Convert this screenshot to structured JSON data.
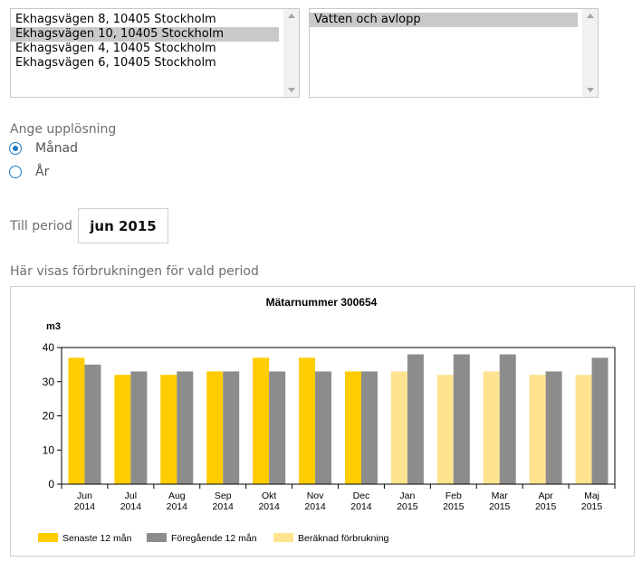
{
  "addresses": {
    "items": [
      {
        "label": "Ekhagsvägen 8, 10405 Stockholm",
        "selected": false
      },
      {
        "label": "Ekhagsvägen 10, 10405 Stockholm",
        "selected": true
      },
      {
        "label": "Ekhagsvägen 4, 10405 Stockholm",
        "selected": false
      },
      {
        "label": "Ekhagsvägen 6, 10405 Stockholm",
        "selected": false
      }
    ]
  },
  "services": {
    "items": [
      {
        "label": "Vatten och avlopp",
        "selected": true
      }
    ]
  },
  "resolution": {
    "label": "Ange upplösning",
    "options": [
      {
        "label": "Månad",
        "selected": true
      },
      {
        "label": "År",
        "selected": false
      }
    ]
  },
  "period": {
    "label": "Till period",
    "value": "jun 2015"
  },
  "consumption_caption": "Här visas förbrukningen för vald period",
  "colors": {
    "latest": "#ffcc00",
    "previous": "#8c8c8c",
    "estimated": "#ffe38f",
    "accent": "#1a7ac3"
  },
  "chart_data": {
    "type": "bar",
    "title": "Mätarnummer 300654",
    "ylabel": "m3",
    "xlabel": "",
    "ylim": [
      0,
      40
    ],
    "yticks": [
      0,
      10,
      20,
      30,
      40
    ],
    "grid": false,
    "legend_position": "bottom",
    "categories": [
      [
        "Jun",
        "2014"
      ],
      [
        "Jul",
        "2014"
      ],
      [
        "Aug",
        "2014"
      ],
      [
        "Sep",
        "2014"
      ],
      [
        "Okt",
        "2014"
      ],
      [
        "Nov",
        "2014"
      ],
      [
        "Dec",
        "2014"
      ],
      [
        "Jan",
        "2015"
      ],
      [
        "Feb",
        "2015"
      ],
      [
        "Mar",
        "2015"
      ],
      [
        "Apr",
        "2015"
      ],
      [
        "Maj",
        "2015"
      ]
    ],
    "series": [
      {
        "name": "Senaste 12 mån",
        "color": "#ffcc00",
        "values": [
          37,
          32,
          32,
          33,
          37,
          37,
          33,
          null,
          null,
          null,
          null,
          null
        ]
      },
      {
        "name": "Föregående 12 mån",
        "color": "#8c8c8c",
        "values": [
          35,
          33,
          33,
          33,
          33,
          33,
          33,
          38,
          38,
          38,
          33,
          37
        ]
      },
      {
        "name": "Beräknad förbrukning",
        "color": "#ffe38f",
        "values": [
          null,
          null,
          null,
          null,
          null,
          null,
          null,
          33,
          32,
          33,
          32,
          32
        ]
      }
    ]
  }
}
